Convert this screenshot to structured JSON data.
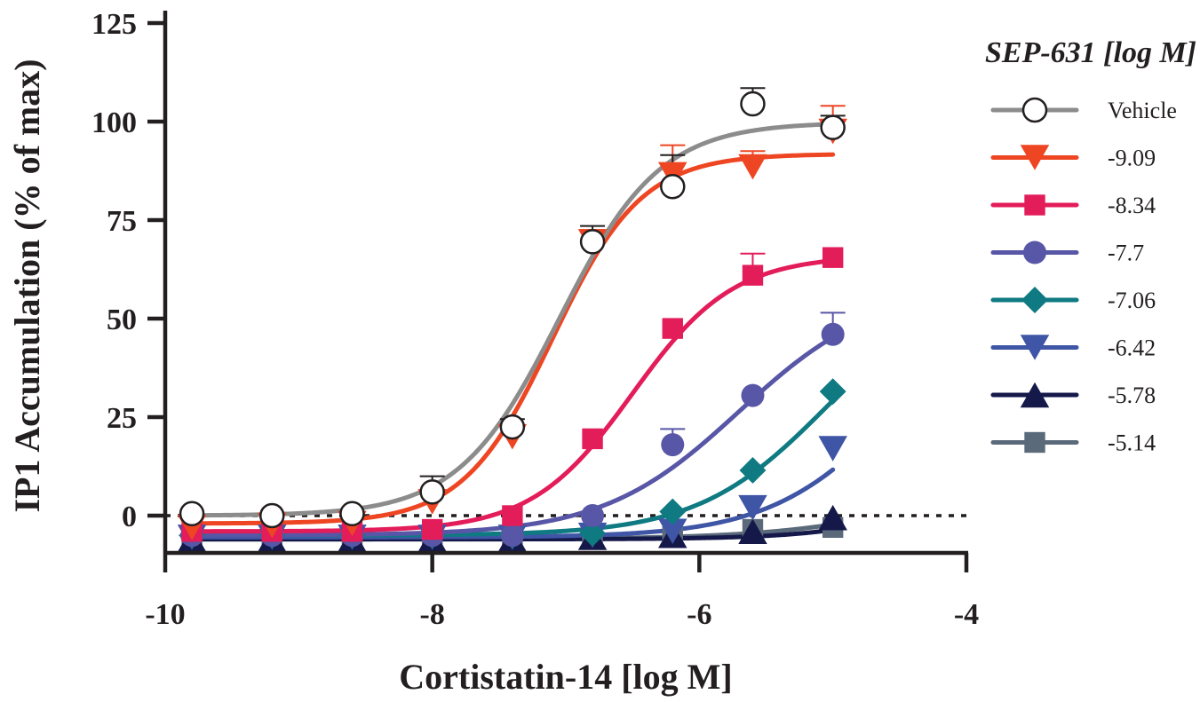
{
  "chart_data": {
    "type": "line",
    "title": "",
    "xlabel": "Cortistatin-14 [log M]",
    "ylabel": "IP1 Accumulation (% of max)",
    "xlim": [
      -10,
      -4
    ],
    "ylim": [
      -10,
      125
    ],
    "xticks": [
      -10,
      -8,
      -6,
      -4
    ],
    "yticks": [
      0,
      25,
      50,
      75,
      100,
      125
    ],
    "xtick_labels": [
      "-10",
      "-8",
      "-6",
      "-4"
    ],
    "ytick_labels": [
      "0",
      "25",
      "50",
      "75",
      "100",
      "125"
    ],
    "zero_reference_line": true,
    "grid": false,
    "legend": {
      "title": "SEP-631 [log M]",
      "position": "right"
    },
    "x": [
      -9.8,
      -9.2,
      -8.6,
      -8.0,
      -7.4,
      -6.8,
      -6.2,
      -5.6,
      -5.0
    ],
    "series": [
      {
        "name": "Vehicle",
        "color": "#8c8c8c",
        "marker_color": "#231f20",
        "marker": "open-circle",
        "values": [
          0.5,
          0.0,
          0.5,
          6.0,
          22.5,
          69.5,
          83.5,
          104.5,
          98.5
        ],
        "error": [
          null,
          null,
          null,
          4.0,
          2.0,
          4.0,
          8.0,
          4.0,
          3.0
        ],
        "fit": {
          "bottom": 0.0,
          "top": 99.8,
          "logEC50": -7.05,
          "hill": 1.15
        }
      },
      {
        "name": "-9.09",
        "color": "#ee4623",
        "marker": "triangle-down",
        "values": [
          -3.0,
          -2.5,
          -2.0,
          3.5,
          20.0,
          69.5,
          86.5,
          88.5,
          97.5
        ],
        "error": [
          null,
          2.5,
          null,
          null,
          3.0,
          3.0,
          7.5,
          4.0,
          6.5
        ],
        "fit": {
          "bottom": -2.0,
          "top": 91.8,
          "logEC50": -7.1,
          "hill": 1.3
        }
      },
      {
        "name": "-8.34",
        "color": "#e31c5a",
        "marker": "square",
        "values": [
          -4.0,
          -4.0,
          -4.0,
          -3.5,
          0.0,
          19.5,
          47.5,
          61.0,
          65.5
        ],
        "error": [
          null,
          null,
          null,
          null,
          null,
          null,
          null,
          5.5,
          null
        ],
        "fit": {
          "bottom": -4.0,
          "top": 66.0,
          "logEC50": -6.5,
          "hill": 1.15
        }
      },
      {
        "name": "-7.7",
        "color": "#5856a6",
        "marker": "circle",
        "values": [
          -5.0,
          -5.0,
          -5.0,
          -5.0,
          -5.0,
          0.0,
          18.0,
          30.5,
          46.0
        ],
        "error": [
          null,
          null,
          null,
          null,
          null,
          null,
          4.0,
          null,
          5.5
        ],
        "fit": {
          "bottom": -5.0,
          "top": 58.0,
          "logEC50": -5.7,
          "hill": 0.85
        }
      },
      {
        "name": "-7.06",
        "color": "#0f7a82",
        "marker": "diamond",
        "values": [
          -5.0,
          -5.0,
          -5.0,
          -5.0,
          -5.0,
          -4.5,
          1.0,
          11.5,
          31.5
        ],
        "error": [
          null,
          null,
          null,
          null,
          null,
          null,
          null,
          null,
          null
        ],
        "fit": {
          "bottom": -5.0,
          "top": 60.0,
          "logEC50": -5.05,
          "hill": 0.9
        }
      },
      {
        "name": "-6.42",
        "color": "#3f55a5",
        "marker": "triangle-down",
        "values": [
          -5.5,
          -5.5,
          -5.5,
          -5.5,
          -5.5,
          -5.0,
          -4.0,
          2.0,
          17.0
        ],
        "error": [
          null,
          null,
          null,
          null,
          null,
          null,
          null,
          null,
          null
        ],
        "fit": {
          "bottom": -5.5,
          "top": 60.0,
          "logEC50": -4.5,
          "hill": 0.9
        }
      },
      {
        "name": "-5.78",
        "color": "#15194a",
        "marker": "triangle-up",
        "values": [
          -6.0,
          -6.0,
          -6.0,
          -6.0,
          -6.0,
          -5.5,
          -5.0,
          -4.0,
          -0.5
        ],
        "error": [
          null,
          null,
          null,
          null,
          null,
          null,
          null,
          null,
          null
        ],
        "fit": {
          "bottom": -6.0,
          "top": 40.0,
          "logEC50": -3.6,
          "hill": 0.9
        }
      },
      {
        "name": "-5.14",
        "color": "#5b6a7a",
        "marker": "square",
        "values": [
          -6.0,
          -6.0,
          -6.0,
          -5.5,
          -5.5,
          -5.0,
          -4.5,
          -3.5,
          -3.0
        ],
        "error": [
          null,
          null,
          null,
          null,
          null,
          null,
          null,
          null,
          null
        ],
        "fit": {
          "bottom": -6.0,
          "top": 20.0,
          "logEC50": -3.9,
          "hill": 0.7
        }
      }
    ]
  }
}
